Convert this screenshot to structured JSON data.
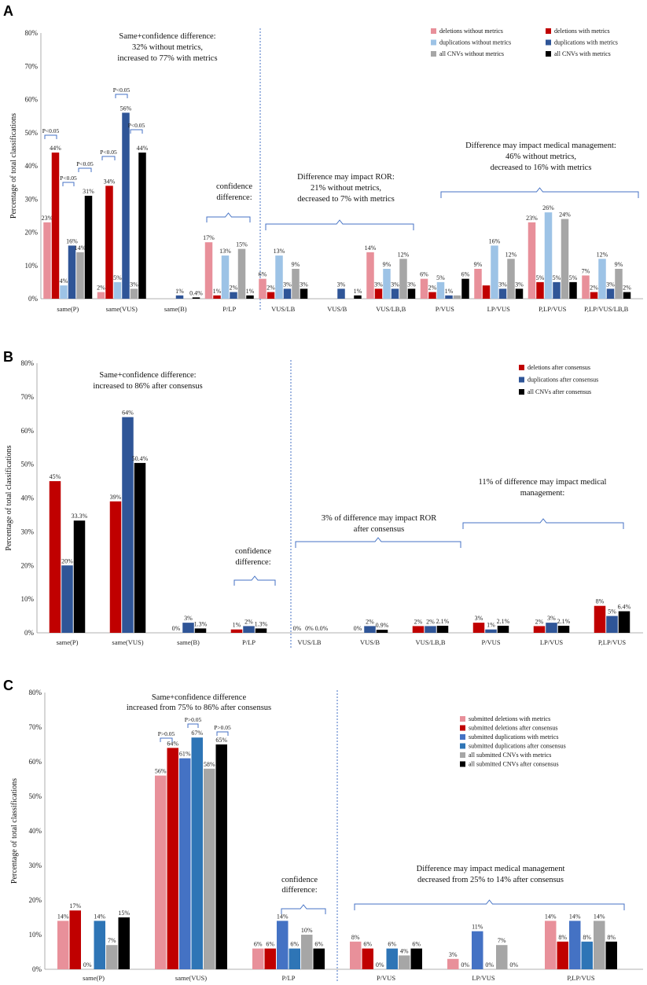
{
  "chart_data": [
    {
      "panel": "A",
      "type": "bar",
      "ylabel": "Percentage of total classifications",
      "ylim": [
        0,
        80
      ],
      "yticks": [
        "0%",
        "10%",
        "20%",
        "30%",
        "40%",
        "50%",
        "60%",
        "70%",
        "80%"
      ],
      "categories": [
        "same(P)",
        "same(VUS)",
        "same(B)",
        "P/LP",
        "VUS/LB",
        "VUS/B",
        "VUS/LB,B",
        "P/VUS",
        "LP/VUS",
        "P,LP/VUS",
        "P,LP/VUS/LB,B"
      ],
      "series": [
        {
          "name": "deletions without metrics",
          "color": "#e8909a",
          "values": [
            23,
            2,
            0,
            17,
            6,
            0,
            14,
            6,
            9,
            23,
            7
          ],
          "labels": [
            "23%",
            "2%",
            "",
            "17%",
            "6%",
            "",
            "14%",
            "6%",
            "9%",
            "23%",
            "7%"
          ]
        },
        {
          "name": "deletions with metrics",
          "color": "#c00000",
          "values": [
            44,
            34,
            0,
            1,
            2,
            0,
            3,
            2,
            4,
            5,
            2
          ],
          "labels": [
            "44%",
            "34%",
            "",
            "1%",
            "2%",
            "",
            "3%",
            "2%",
            "",
            "5%",
            "2%"
          ]
        },
        {
          "name": "duplications without metrics",
          "color": "#9dc3e6",
          "values": [
            4,
            5,
            0,
            13,
            13,
            0,
            9,
            5,
            16,
            26,
            12
          ],
          "labels": [
            "4%",
            "5%",
            "",
            "13%",
            "13%",
            "",
            "9%",
            "5%",
            "16%",
            "26%",
            "12%"
          ]
        },
        {
          "name": "duplications with metrics",
          "color": "#2f5597",
          "values": [
            16,
            56,
            1,
            2,
            3,
            3,
            3,
            1,
            3,
            5,
            3
          ],
          "labels": [
            "16%",
            "56%",
            "1%",
            "2%",
            "3%",
            "3%",
            "3%",
            "1%",
            "3%",
            "5%",
            "3%"
          ]
        },
        {
          "name": "all CNVs without metrics",
          "color": "#a6a6a6",
          "values": [
            14,
            3,
            0,
            15,
            9,
            0,
            12,
            1,
            12,
            24,
            9
          ],
          "labels": [
            "14%",
            "3%",
            "",
            "15%",
            "9%",
            "",
            "12%",
            "",
            "12%",
            "24%",
            "9%"
          ]
        },
        {
          "name": "all CNVs with metrics",
          "color": "#000000",
          "values": [
            31,
            44,
            0.4,
            1,
            3,
            1,
            3,
            6,
            3,
            5,
            2
          ],
          "labels": [
            "31%",
            "44%",
            "0.4%",
            "1%",
            "3%",
            "1%",
            "3%",
            "6%",
            "3%",
            "5%",
            "2%"
          ]
        }
      ],
      "annotations": [
        {
          "lines": [
            "Same+confidence difference:",
            "32% without metrics,",
            "increased to 77% with metrics"
          ]
        },
        {
          "lines": [
            "confidence",
            "difference:"
          ]
        },
        {
          "lines": [
            "Difference may impact ROR:",
            "21% without metrics,",
            "decreased to 7% with metrics"
          ]
        },
        {
          "lines": [
            "Difference may impact medical management:",
            "46% without metrics,",
            "decreased to 16% with metrics"
          ]
        }
      ],
      "significance": [
        "P<0.05",
        "P<0.05",
        "P<0.05",
        "P<0.05",
        "P<0.05",
        "P<0.05"
      ]
    },
    {
      "panel": "B",
      "type": "bar",
      "ylabel": "Percentage of total classifications",
      "ylim": [
        0,
        80
      ],
      "yticks": [
        "0%",
        "10%",
        "20%",
        "30%",
        "40%",
        "50%",
        "60%",
        "70%",
        "80%"
      ],
      "categories": [
        "same(P)",
        "same(VUS)",
        "same(B)",
        "P/LP",
        "VUS/LB",
        "VUS/B",
        "VUS/LB,B",
        "P/VUS",
        "LP/VUS",
        "P,LP/VUS"
      ],
      "series": [
        {
          "name": "deletions after consensus",
          "color": "#c00000",
          "values": [
            45,
            39,
            0,
            1,
            0,
            0,
            2,
            3,
            2,
            8
          ],
          "labels": [
            "45%",
            "39%",
            "0%",
            "1%",
            "0%",
            "0%",
            "2%",
            "3%",
            "2%",
            "8%"
          ]
        },
        {
          "name": "duplications after consensus",
          "color": "#2f5597",
          "values": [
            20,
            64,
            3,
            2,
            0,
            2,
            2,
            1,
            3,
            5
          ],
          "labels": [
            "20%",
            "64%",
            "3%",
            "2%",
            "0%",
            "2%",
            "2%",
            "1%",
            "3%",
            "5%"
          ]
        },
        {
          "name": "all CNVs after consensus",
          "color": "#000000",
          "values": [
            33.3,
            50.4,
            1.3,
            1.3,
            0,
            0.9,
            2.1,
            2.1,
            2.1,
            6.4
          ],
          "labels": [
            "33.3%",
            "50.4%",
            "1.3%",
            "1.3%",
            "0.0%",
            "0.9%",
            "2.1%",
            "2.1%",
            "2.1%",
            "6.4%"
          ]
        }
      ],
      "annotations": [
        {
          "lines": [
            "Same+confidence difference:",
            "increased to 86% after consensus"
          ]
        },
        {
          "lines": [
            "confidence",
            "difference:"
          ]
        },
        {
          "lines": [
            "3% of difference may impact ROR",
            "after  consensus"
          ]
        },
        {
          "lines": [
            "11% of difference may impact medical",
            "management:"
          ]
        }
      ]
    },
    {
      "panel": "C",
      "type": "bar",
      "ylabel": "Percentage of total classifications",
      "ylim": [
        0,
        80
      ],
      "yticks": [
        "0%",
        "10%",
        "20%",
        "30%",
        "40%",
        "50%",
        "60%",
        "70%",
        "80%"
      ],
      "categories": [
        "same(P)",
        "same(VUS)",
        "P/LP",
        "P/VUS",
        "LP/VUS",
        "P,LP/VUS"
      ],
      "series": [
        {
          "name": "submitted deletions with metrics",
          "color": "#e8909a",
          "values": [
            14,
            56,
            6,
            8,
            3,
            14
          ],
          "labels": [
            "14%",
            "56%",
            "6%",
            "8%",
            "3%",
            "14%"
          ]
        },
        {
          "name": "submitted deletions after consensus",
          "color": "#c00000",
          "values": [
            17,
            64,
            6,
            6,
            0,
            8
          ],
          "labels": [
            "17%",
            "64%",
            "6%",
            "6%",
            "0%",
            "8%"
          ]
        },
        {
          "name": "submitted duplications with metrics",
          "color": "#4472c4",
          "values": [
            0,
            61,
            14,
            0,
            11,
            14
          ],
          "labels": [
            "0%",
            "61%",
            "14%",
            "0%",
            "11%",
            "14%"
          ]
        },
        {
          "name": "submitted duplications after consensus",
          "color": "#2e75b6",
          "values": [
            14,
            67,
            6,
            6,
            0,
            8
          ],
          "labels": [
            "14%",
            "67%",
            "6%",
            "6%",
            "0%",
            "8%"
          ]
        },
        {
          "name": "all submitted CNVs with metrics",
          "color": "#a6a6a6",
          "values": [
            7,
            58,
            10,
            4,
            7,
            14
          ],
          "labels": [
            "7%",
            "58%",
            "10%",
            "4%",
            "7%",
            "14%"
          ]
        },
        {
          "name": "all submitted CNVs after consensus",
          "color": "#000000",
          "values": [
            15,
            65,
            6,
            6,
            0,
            8
          ],
          "labels": [
            "15%",
            "65%",
            "6%",
            "6%",
            "0%",
            "8%"
          ]
        }
      ],
      "annotations": [
        {
          "lines": [
            "Same+confidence difference",
            "increased from 75% to 86% after consensus"
          ]
        },
        {
          "lines": [
            "confidence",
            "difference:"
          ]
        },
        {
          "lines": [
            "Difference may impact medical management",
            "decreased from 25% to 14% after consensus"
          ]
        }
      ],
      "significance": [
        "P>0.05",
        "P>0.05",
        "P>0.05"
      ]
    }
  ]
}
